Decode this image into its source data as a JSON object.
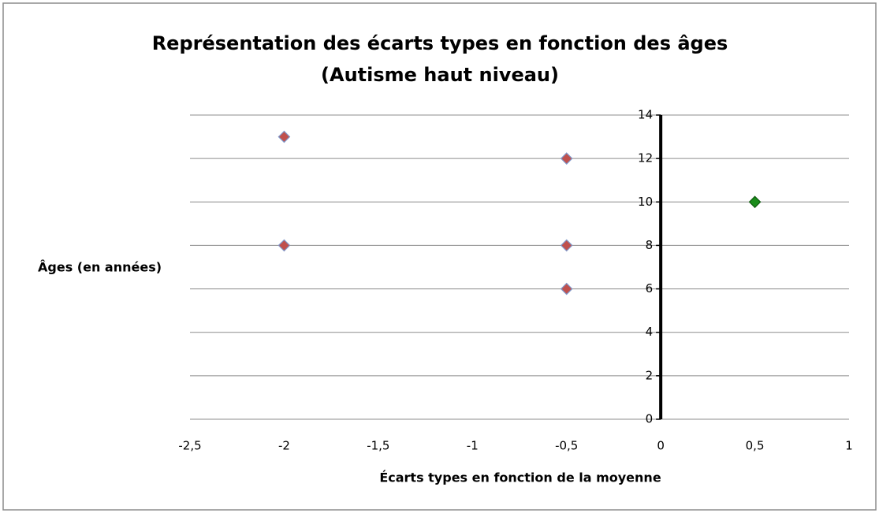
{
  "chart_data": {
    "type": "scatter",
    "title": "Représentation des écarts types en fonction des âges",
    "subtitle": "(Autisme haut niveau)",
    "x_label": "Écarts types en fonction de la moyenne",
    "y_label": "Âges (en années)",
    "series": [
      {
        "color": "#c0504d",
        "x": [
          -2,
          -0.5,
          -2,
          -0.5,
          -0.5
        ],
        "values": [
          13,
          12,
          8,
          8,
          6
        ]
      },
      {
        "color": "#1a8c1a",
        "x": [
          0.5
        ],
        "values": [
          10
        ]
      }
    ],
    "xlim": [
      -2.5,
      1
    ],
    "xticks": [
      {
        "value": -2.5,
        "label": "-2,5"
      },
      -2,
      {
        "value": -1.5,
        "label": "-1,5"
      },
      -1,
      {
        "value": -0.5,
        "label": "-0,5"
      },
      0,
      {
        "value": 0.5,
        "label": "0,5"
      },
      1
    ],
    "ylim": [
      0,
      14
    ],
    "yticks": [
      0,
      2,
      4,
      6,
      8,
      10,
      12,
      14
    ],
    "grid": true
  }
}
